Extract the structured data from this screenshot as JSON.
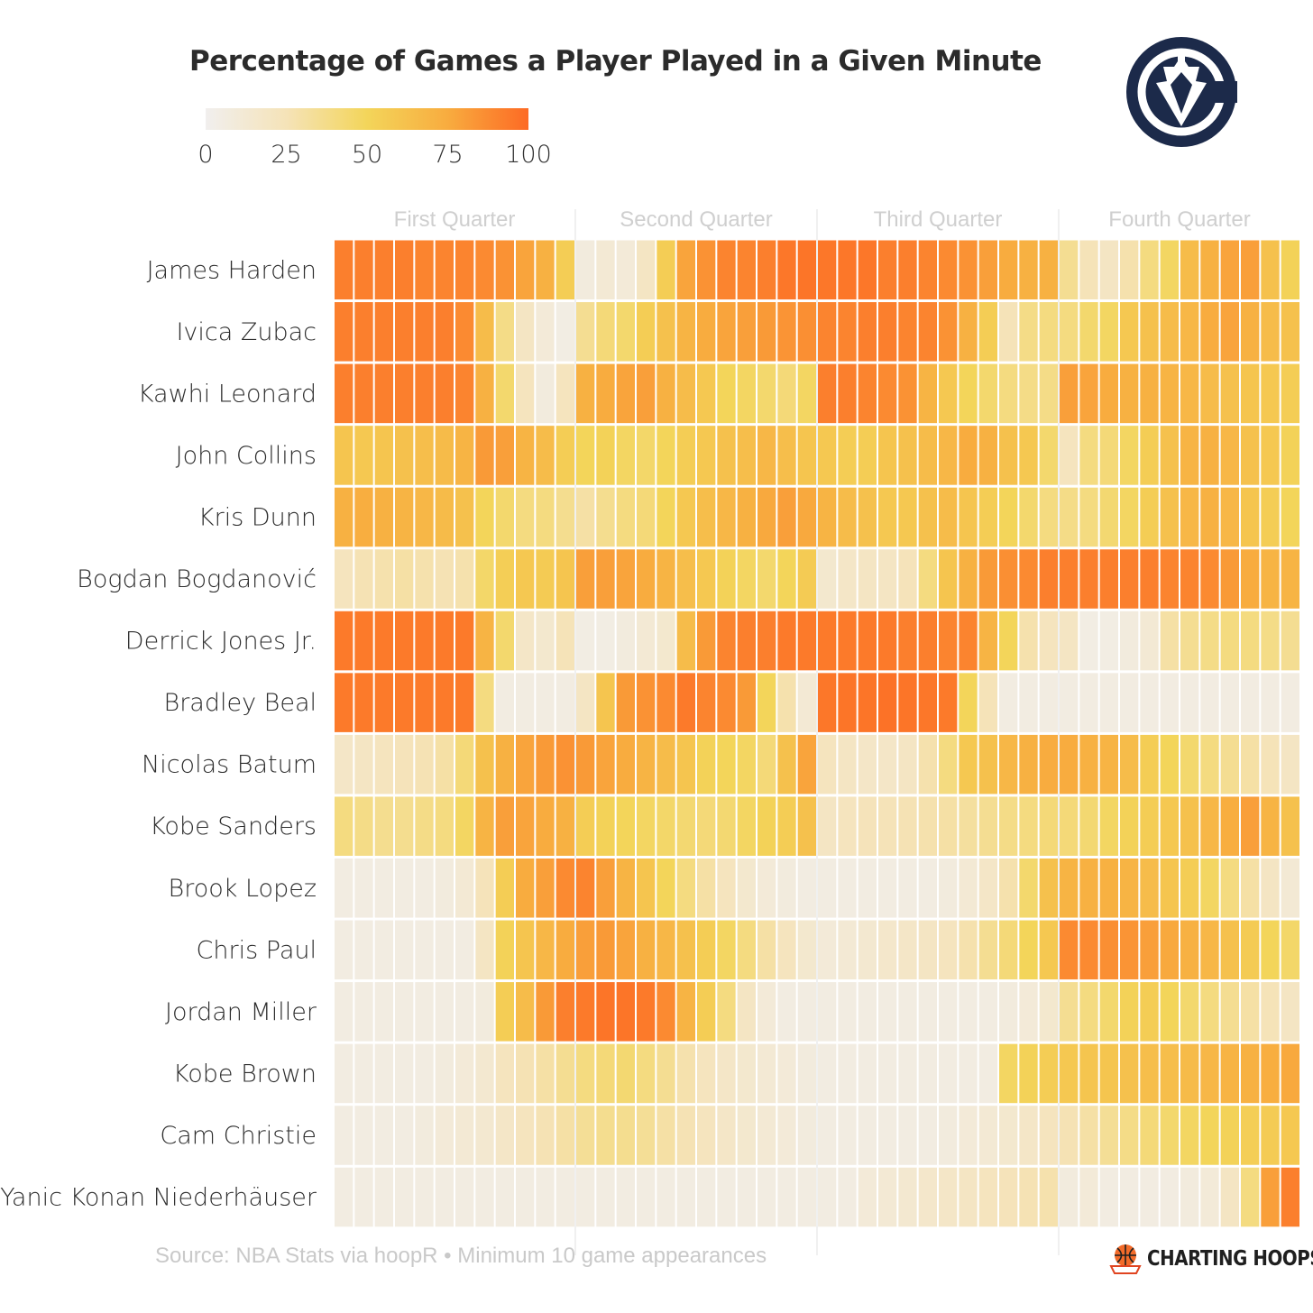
{
  "chart_data": {
    "type": "heatmap",
    "title": "Percentage of Games a Player Played in a Given Minute",
    "legend": {
      "min": 0,
      "max": 100,
      "ticks": [
        "0",
        "25",
        "50",
        "75",
        "100"
      ],
      "colors": [
        "#f1efee",
        "#f5e3b8",
        "#f3d55a",
        "#f8ac3f",
        "#fd6a24"
      ]
    },
    "quarters": [
      "First Quarter",
      "Second Quarter",
      "Third Quarter",
      "Fourth Quarter"
    ],
    "minutes_per_quarter": 12,
    "players": [
      "James Harden",
      "Ivica Zubac",
      "Kawhi Leonard",
      "John Collins",
      "Kris Dunn",
      "Bogdan Bogdanović",
      "Derrick Jones Jr.",
      "Bradley Beal",
      "Nicolas Batum",
      "Kobe Sanders",
      "Brook Lopez",
      "Chris Paul",
      "Jordan Miller",
      "Kobe Brown",
      "Cam Christie",
      "Yanic Konan Niederhäuser"
    ],
    "values": [
      [
        92,
        92,
        92,
        92,
        90,
        90,
        90,
        88,
        85,
        78,
        72,
        55,
        8,
        12,
        10,
        20,
        55,
        78,
        85,
        90,
        90,
        92,
        95,
        96,
        95,
        95,
        95,
        92,
        92,
        90,
        88,
        85,
        80,
        75,
        72,
        72,
        35,
        25,
        20,
        28,
        40,
        48,
        65,
        72,
        78,
        80,
        62,
        52
      ],
      [
        92,
        92,
        92,
        92,
        92,
        92,
        88,
        65,
        38,
        20,
        10,
        5,
        35,
        42,
        45,
        55,
        62,
        70,
        75,
        78,
        80,
        82,
        84,
        86,
        90,
        90,
        92,
        92,
        90,
        90,
        85,
        72,
        55,
        25,
        38,
        40,
        40,
        45,
        48,
        58,
        62,
        65,
        68,
        75,
        78,
        72,
        65,
        62
      ],
      [
        92,
        92,
        92,
        92,
        92,
        92,
        90,
        72,
        45,
        22,
        8,
        22,
        72,
        75,
        78,
        80,
        72,
        65,
        58,
        50,
        48,
        45,
        42,
        48,
        92,
        92,
        90,
        88,
        85,
        70,
        58,
        50,
        45,
        40,
        38,
        38,
        80,
        78,
        75,
        72,
        72,
        70,
        68,
        65,
        62,
        60,
        58,
        55
      ],
      [
        60,
        58,
        60,
        62,
        64,
        66,
        70,
        82,
        80,
        70,
        65,
        55,
        50,
        52,
        48,
        46,
        50,
        55,
        58,
        62,
        64,
        68,
        64,
        60,
        58,
        55,
        55,
        60,
        62,
        65,
        68,
        75,
        72,
        62,
        58,
        45,
        22,
        40,
        42,
        48,
        55,
        62,
        70,
        72,
        68,
        62,
        58,
        52
      ],
      [
        72,
        74,
        72,
        70,
        68,
        66,
        62,
        50,
        45,
        40,
        40,
        36,
        30,
        36,
        40,
        42,
        50,
        58,
        64,
        68,
        72,
        76,
        80,
        76,
        70,
        65,
        62,
        58,
        58,
        62,
        65,
        60,
        55,
        50,
        45,
        40,
        38,
        40,
        44,
        48,
        55,
        62,
        68,
        72,
        68,
        60,
        55,
        50
      ],
      [
        22,
        26,
        28,
        30,
        28,
        26,
        28,
        46,
        54,
        58,
        56,
        60,
        80,
        80,
        78,
        75,
        70,
        64,
        58,
        52,
        48,
        45,
        50,
        56,
        15,
        18,
        20,
        20,
        24,
        40,
        60,
        72,
        82,
        86,
        88,
        92,
        92,
        92,
        92,
        92,
        92,
        90,
        90,
        88,
        82,
        75,
        70,
        70
      ],
      [
        94,
        94,
        94,
        94,
        94,
        94,
        94,
        70,
        45,
        18,
        15,
        25,
        5,
        5,
        8,
        12,
        15,
        65,
        82,
        90,
        92,
        92,
        94,
        94,
        94,
        94,
        94,
        94,
        92,
        92,
        90,
        90,
        70,
        50,
        28,
        22,
        20,
        5,
        5,
        8,
        12,
        30,
        35,
        38,
        40,
        40,
        38,
        35
      ],
      [
        94,
        94,
        94,
        94,
        94,
        94,
        94,
        40,
        6,
        6,
        6,
        6,
        20,
        60,
        82,
        85,
        88,
        94,
        90,
        88,
        82,
        50,
        28,
        12,
        95,
        96,
        96,
        97,
        96,
        95,
        94,
        50,
        25,
        6,
        6,
        6,
        6,
        6,
        6,
        6,
        6,
        6,
        6,
        6,
        6,
        6,
        6,
        6
      ],
      [
        18,
        20,
        22,
        24,
        26,
        30,
        42,
        62,
        72,
        78,
        82,
        85,
        82,
        78,
        75,
        70,
        65,
        60,
        52,
        50,
        48,
        42,
        62,
        78,
        22,
        20,
        18,
        18,
        20,
        28,
        40,
        58,
        62,
        68,
        72,
        75,
        75,
        72,
        70,
        65,
        55,
        50,
        45,
        40,
        35,
        30,
        25,
        20
      ],
      [
        40,
        38,
        36,
        36,
        38,
        40,
        48,
        70,
        80,
        78,
        75,
        72,
        55,
        52,
        50,
        48,
        46,
        44,
        42,
        44,
        48,
        52,
        55,
        62,
        20,
        22,
        24,
        25,
        26,
        28,
        30,
        32,
        35,
        38,
        40,
        42,
        42,
        44,
        48,
        52,
        55,
        58,
        62,
        68,
        74,
        80,
        70,
        62
      ],
      [
        6,
        6,
        6,
        6,
        6,
        8,
        12,
        24,
        55,
        75,
        80,
        88,
        90,
        80,
        70,
        60,
        50,
        40,
        30,
        22,
        15,
        10,
        8,
        6,
        6,
        6,
        6,
        6,
        6,
        6,
        8,
        12,
        18,
        28,
        45,
        62,
        70,
        72,
        72,
        70,
        65,
        60,
        55,
        48,
        40,
        30,
        20,
        12
      ],
      [
        6,
        6,
        6,
        6,
        6,
        6,
        6,
        20,
        52,
        60,
        68,
        75,
        80,
        82,
        78,
        72,
        68,
        62,
        55,
        48,
        40,
        30,
        22,
        15,
        10,
        12,
        14,
        16,
        18,
        20,
        22,
        28,
        35,
        42,
        50,
        58,
        88,
        88,
        86,
        84,
        80,
        76,
        72,
        68,
        62,
        56,
        50,
        46
      ],
      [
        6,
        6,
        6,
        6,
        6,
        6,
        6,
        8,
        55,
        65,
        82,
        92,
        94,
        96,
        96,
        94,
        88,
        70,
        55,
        40,
        20,
        10,
        6,
        6,
        6,
        6,
        6,
        6,
        6,
        6,
        6,
        6,
        6,
        8,
        10,
        15,
        35,
        40,
        45,
        52,
        55,
        50,
        45,
        40,
        35,
        30,
        25,
        20
      ],
      [
        6,
        6,
        6,
        6,
        6,
        8,
        10,
        14,
        22,
        26,
        30,
        35,
        40,
        42,
        44,
        40,
        35,
        28,
        22,
        18,
        15,
        12,
        10,
        8,
        6,
        6,
        6,
        6,
        6,
        6,
        6,
        6,
        6,
        48,
        52,
        55,
        58,
        60,
        60,
        62,
        64,
        64,
        66,
        68,
        70,
        72,
        74,
        76
      ],
      [
        6,
        6,
        6,
        6,
        8,
        10,
        12,
        14,
        18,
        22,
        26,
        30,
        34,
        36,
        36,
        34,
        30,
        26,
        22,
        18,
        15,
        12,
        10,
        8,
        6,
        6,
        6,
        6,
        6,
        6,
        8,
        10,
        12,
        15,
        18,
        22,
        26,
        30,
        34,
        38,
        42,
        45,
        48,
        50,
        52,
        54,
        56,
        58
      ],
      [
        6,
        6,
        6,
        6,
        6,
        6,
        6,
        6,
        6,
        6,
        6,
        6,
        6,
        6,
        6,
        6,
        6,
        6,
        6,
        6,
        6,
        6,
        6,
        6,
        6,
        6,
        10,
        12,
        14,
        16,
        18,
        20,
        22,
        24,
        26,
        28,
        8,
        10,
        6,
        6,
        6,
        6,
        8,
        10,
        20,
        40,
        80,
        92
      ]
    ]
  },
  "footer": {
    "source": "Source: NBA Stats via hoopR • Minimum 10 game appearances",
    "brand": "CHARTING HOOPS"
  },
  "logo": {
    "name": "team-logo-icon",
    "color": "#1c2a4a"
  }
}
